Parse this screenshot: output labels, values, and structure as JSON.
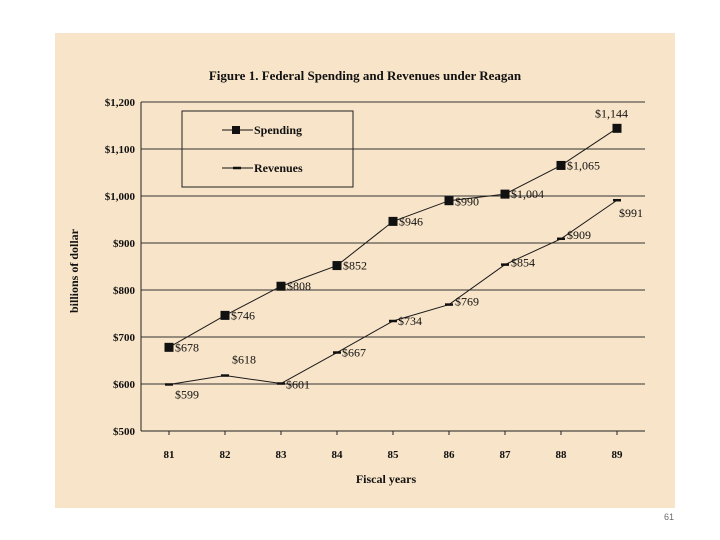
{
  "page_number": "61",
  "chart_data": {
    "type": "line",
    "title": "Figure 1. Federal Spending and Revenues under Reagan",
    "xlabel": "Fiscal years",
    "ylabel": "billions of dollar",
    "categories": [
      "81",
      "82",
      "83",
      "84",
      "85",
      "86",
      "87",
      "88",
      "89"
    ],
    "ylim": [
      500,
      1200
    ],
    "yticks": [
      500,
      600,
      700,
      800,
      900,
      1000,
      1100,
      1200
    ],
    "ytick_labels": [
      "$500",
      "$600",
      "$700",
      "$800",
      "$900",
      "$1,000",
      "$1,100",
      "$1,200"
    ],
    "grid": true,
    "legend_position": "top-left",
    "series": [
      {
        "name": "Spending",
        "marker": "square",
        "values": [
          678,
          746,
          808,
          852,
          946,
          990,
          1004,
          1065,
          1144
        ],
        "labels": [
          "$678",
          "$746",
          "$808",
          "$852",
          "$946",
          "$990",
          "$1,004",
          "$1,065",
          "$1,144"
        ]
      },
      {
        "name": "Revenues",
        "marker": "dash",
        "values": [
          599,
          618,
          601,
          667,
          734,
          769,
          854,
          909,
          991
        ],
        "labels": [
          "$599",
          "$618",
          "$601",
          "$667",
          "$734",
          "$769",
          "$854",
          "$909",
          "$991"
        ]
      }
    ],
    "colors": {
      "background": "#f8e4c8",
      "line": "#1a1a1a",
      "grid": "#333333"
    }
  }
}
